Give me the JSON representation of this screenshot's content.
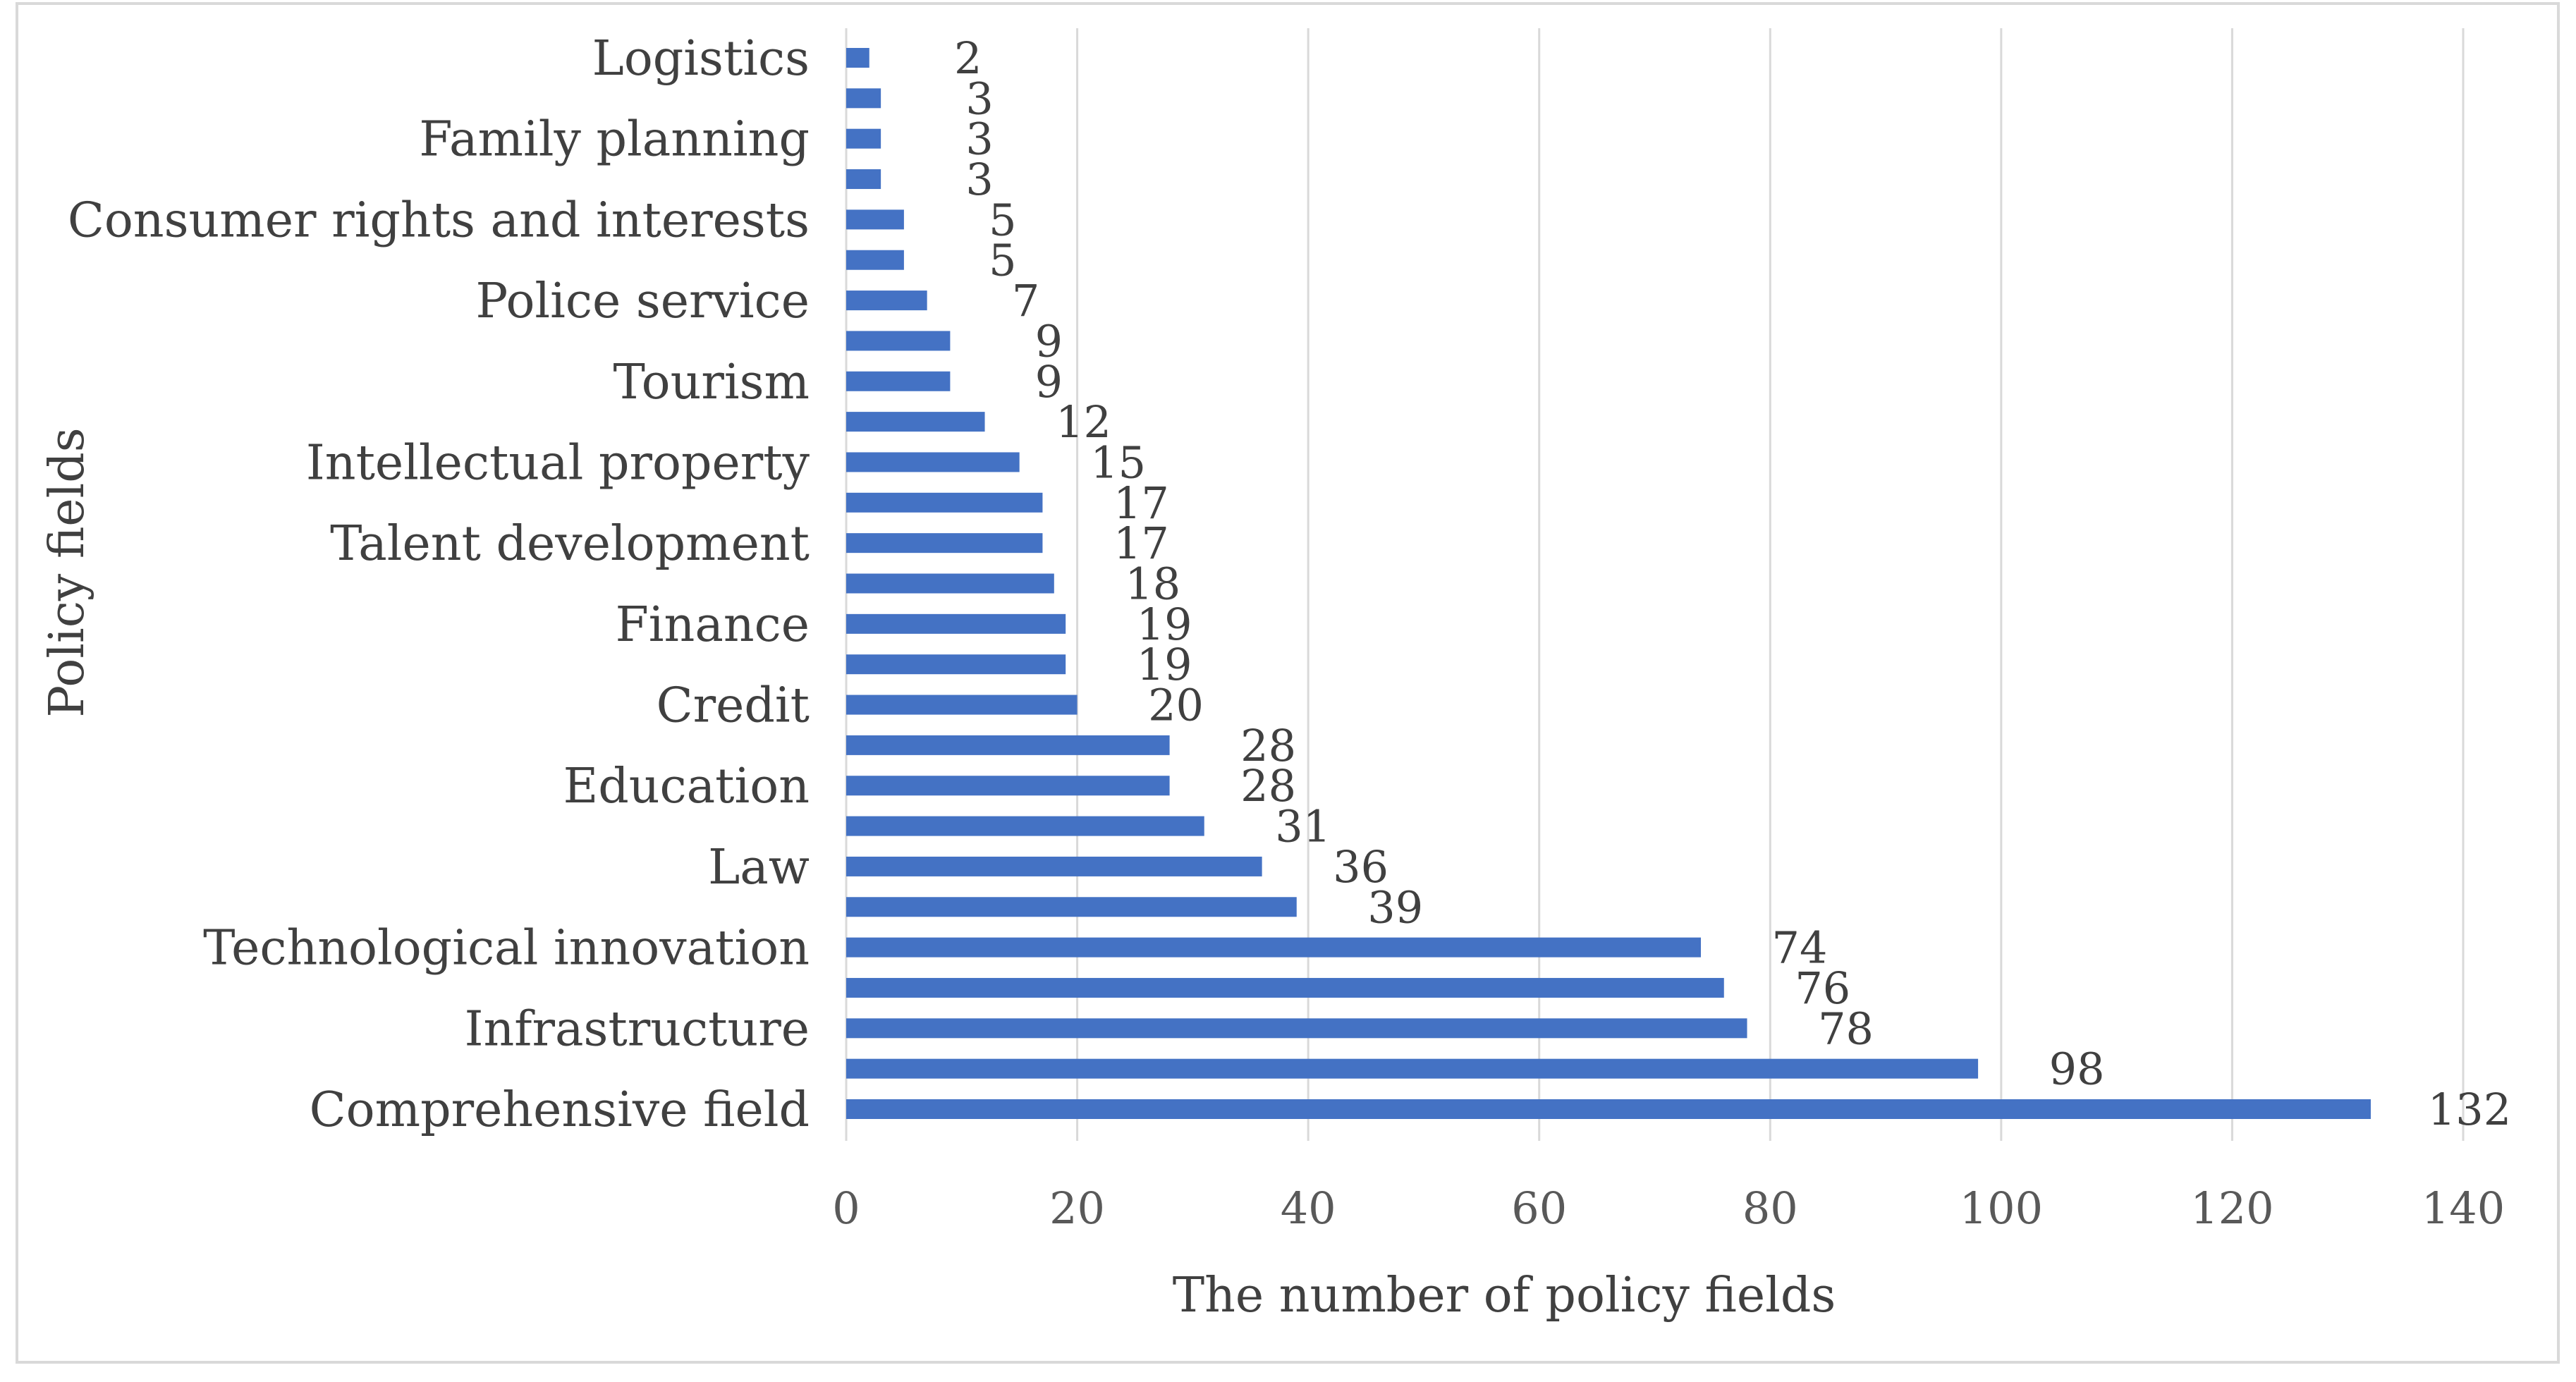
{
  "chart_data": {
    "type": "bar",
    "orientation": "horizontal",
    "xlabel": "The number of policy fields",
    "ylabel": "Policy fields",
    "xlim": [
      0,
      140
    ],
    "x_ticks": [
      0,
      20,
      40,
      60,
      80,
      100,
      120,
      140
    ],
    "grid": true,
    "bar_color": "#4472c4",
    "categories": [
      "Comprehensive field",
      "",
      "Infrastructure",
      "",
      "Technological innovation",
      "",
      "Law",
      "",
      "Education",
      "",
      "Credit",
      "",
      "Finance",
      "",
      "Talent development",
      "",
      "Intellectual property",
      "",
      "Tourism",
      "",
      "Police service",
      "",
      "Consumer rights and interests",
      "",
      "Family planning",
      "",
      "Logistics"
    ],
    "values": [
      132,
      98,
      78,
      76,
      74,
      39,
      36,
      31,
      28,
      28,
      20,
      19,
      19,
      18,
      17,
      17,
      15,
      12,
      9,
      9,
      7,
      5,
      5,
      3,
      3,
      3,
      2
    ]
  }
}
